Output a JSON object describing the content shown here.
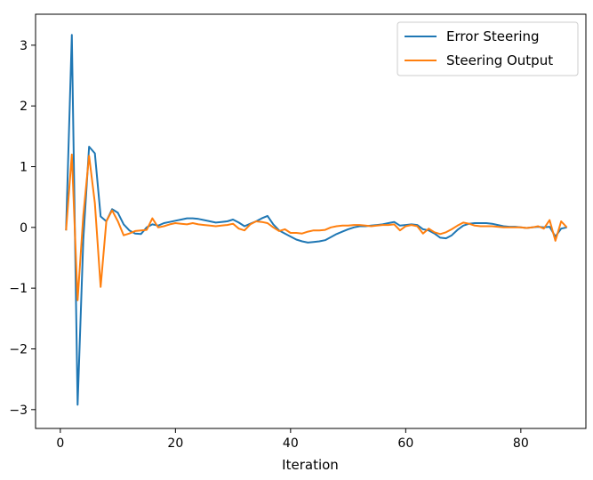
{
  "chart_data": {
    "type": "line",
    "title": "",
    "xlabel": "Iteration",
    "ylabel": "",
    "xlim": [
      -4.3,
      91.3
    ],
    "ylim": [
      -3.31,
      3.51
    ],
    "xticks": [
      0,
      20,
      40,
      60,
      80
    ],
    "yticks": [
      3,
      2,
      1,
      0,
      -1,
      -2,
      -3
    ],
    "ytick_labels": [
      "3",
      "2",
      "1",
      "0",
      "−1",
      "−2",
      "−3"
    ],
    "grid": false,
    "legend_position": "top-right",
    "series": [
      {
        "name": "Error Steering",
        "color": "#1f77b4",
        "x": [
          1,
          2,
          3,
          4,
          5,
          6,
          7,
          8,
          9,
          10,
          11,
          12,
          13,
          14,
          15,
          16,
          17,
          18,
          19,
          20,
          21,
          22,
          23,
          24,
          25,
          26,
          27,
          28,
          29,
          30,
          31,
          32,
          33,
          34,
          35,
          36,
          37,
          38,
          39,
          40,
          41,
          42,
          43,
          44,
          45,
          46,
          47,
          48,
          49,
          50,
          51,
          52,
          53,
          54,
          55,
          56,
          57,
          58,
          59,
          60,
          61,
          62,
          63,
          64,
          65,
          66,
          67,
          68,
          69,
          70,
          71,
          72,
          73,
          74,
          75,
          76,
          77,
          78,
          79,
          80,
          81,
          82,
          83,
          84,
          85,
          86,
          87,
          88
        ],
        "y": [
          -0.05,
          3.17,
          -2.92,
          -0.2,
          1.33,
          1.22,
          0.18,
          0.1,
          0.3,
          0.24,
          0.05,
          -0.05,
          -0.1,
          -0.11,
          0.0,
          0.05,
          0.03,
          0.07,
          0.09,
          0.11,
          0.13,
          0.15,
          0.15,
          0.14,
          0.12,
          0.1,
          0.08,
          0.09,
          0.1,
          0.13,
          0.08,
          0.02,
          0.06,
          0.1,
          0.15,
          0.19,
          0.05,
          -0.05,
          -0.1,
          -0.15,
          -0.2,
          -0.23,
          -0.25,
          -0.24,
          -0.23,
          -0.21,
          -0.16,
          -0.11,
          -0.07,
          -0.03,
          0.0,
          0.02,
          0.02,
          0.03,
          0.04,
          0.05,
          0.07,
          0.09,
          0.03,
          0.04,
          0.05,
          0.04,
          -0.03,
          -0.05,
          -0.1,
          -0.17,
          -0.18,
          -0.13,
          -0.04,
          0.03,
          0.06,
          0.07,
          0.07,
          0.07,
          0.06,
          0.04,
          0.02,
          0.01,
          0.01,
          0.0,
          -0.01,
          0.0,
          0.01,
          0.0,
          0.01,
          -0.15,
          -0.02,
          0.0
        ]
      },
      {
        "name": "Steering Output",
        "color": "#ff7f0e",
        "x": [
          1,
          2,
          3,
          4,
          5,
          6,
          7,
          8,
          9,
          10,
          11,
          12,
          13,
          14,
          15,
          16,
          17,
          18,
          19,
          20,
          21,
          22,
          23,
          24,
          25,
          26,
          27,
          28,
          29,
          30,
          31,
          32,
          33,
          34,
          35,
          36,
          37,
          38,
          39,
          40,
          41,
          42,
          43,
          44,
          45,
          46,
          47,
          48,
          49,
          50,
          51,
          52,
          53,
          54,
          55,
          56,
          57,
          58,
          59,
          60,
          61,
          62,
          63,
          64,
          65,
          66,
          67,
          68,
          69,
          70,
          71,
          72,
          73,
          74,
          75,
          76,
          77,
          78,
          79,
          80,
          81,
          82,
          83,
          84,
          85,
          86,
          87,
          88
        ],
        "y": [
          -0.05,
          1.2,
          -1.2,
          0.2,
          1.18,
          0.4,
          -0.98,
          0.1,
          0.28,
          0.1,
          -0.13,
          -0.1,
          -0.06,
          -0.05,
          -0.04,
          0.15,
          0.0,
          0.02,
          0.05,
          0.07,
          0.06,
          0.05,
          0.07,
          0.05,
          0.04,
          0.03,
          0.02,
          0.03,
          0.04,
          0.06,
          -0.02,
          -0.05,
          0.05,
          0.1,
          0.09,
          0.07,
          0.0,
          -0.06,
          -0.03,
          -0.09,
          -0.09,
          -0.1,
          -0.07,
          -0.05,
          -0.05,
          -0.04,
          0.0,
          0.02,
          0.03,
          0.03,
          0.04,
          0.04,
          0.03,
          0.02,
          0.03,
          0.04,
          0.04,
          0.05,
          -0.05,
          0.02,
          0.04,
          0.02,
          -0.1,
          -0.02,
          -0.08,
          -0.11,
          -0.08,
          -0.03,
          0.03,
          0.08,
          0.06,
          0.03,
          0.02,
          0.02,
          0.02,
          0.01,
          0.0,
          0.0,
          0.0,
          0.0,
          -0.01,
          0.0,
          0.02,
          -0.02,
          0.12,
          -0.22,
          0.1,
          0.0
        ]
      }
    ]
  }
}
